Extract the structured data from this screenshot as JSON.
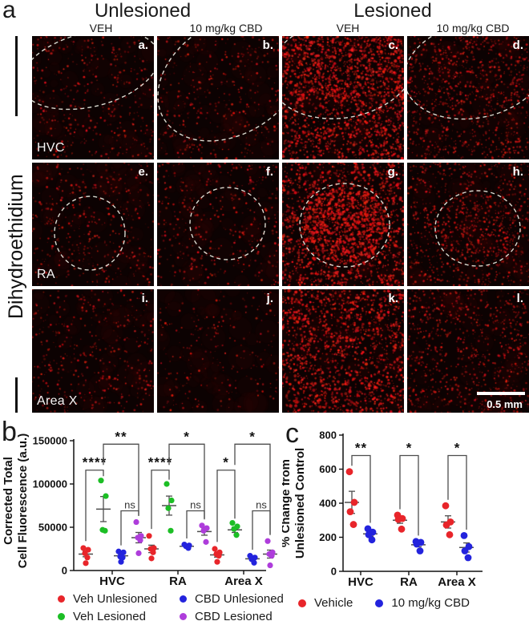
{
  "figure": {
    "panel_a": {
      "label": "a",
      "group_headers": [
        "Unlesioned",
        "Lesioned"
      ],
      "column_headers": [
        "VEH",
        "10 mg/kg CBD",
        "VEH",
        "10 mg/kg CBD"
      ],
      "stain_label": "Dihydroethidium",
      "row_labels": [
        "HVC",
        "RA",
        "Area X"
      ],
      "scale_bar": "0.5 mm",
      "tiles": [
        {
          "label": "a.",
          "row": "HVC",
          "column": "Unlesioned VEH",
          "intensity": "sparse",
          "outlined": true
        },
        {
          "label": "b.",
          "row": "HVC",
          "column": "Unlesioned 10 mg/kg CBD",
          "intensity": "sparse",
          "outlined": true
        },
        {
          "label": "c.",
          "row": "HVC",
          "column": "Lesioned VEH",
          "intensity": "dense",
          "outlined": true
        },
        {
          "label": "d.",
          "row": "HVC",
          "column": "Lesioned 10 mg/kg CBD",
          "intensity": "medium",
          "outlined": true
        },
        {
          "label": "e.",
          "row": "RA",
          "column": "Unlesioned VEH",
          "intensity": "sparse",
          "outlined": true
        },
        {
          "label": "f.",
          "row": "RA",
          "column": "Unlesioned 10 mg/kg CBD",
          "intensity": "sparse",
          "outlined": true
        },
        {
          "label": "g.",
          "row": "RA",
          "column": "Lesioned VEH",
          "intensity": "dense",
          "outlined": true
        },
        {
          "label": "h.",
          "row": "RA",
          "column": "Lesioned 10 mg/kg CBD",
          "intensity": "medium",
          "outlined": true
        },
        {
          "label": "i.",
          "row": "Area X",
          "column": "Unlesioned VEH",
          "intensity": "sparse",
          "outlined": false
        },
        {
          "label": "j.",
          "row": "Area X",
          "column": "Unlesioned 10 mg/kg CBD",
          "intensity": "very-sparse",
          "outlined": false
        },
        {
          "label": "k.",
          "row": "Area X",
          "column": "Lesioned VEH",
          "intensity": "dense",
          "outlined": false
        },
        {
          "label": "l.",
          "row": "Area X",
          "column": "Lesioned 10 mg/kg CBD",
          "intensity": "medium",
          "outlined": false
        }
      ]
    },
    "panel_b": {
      "label": "b"
    },
    "panel_c": {
      "label": "c"
    }
  },
  "chart_data": [
    {
      "type": "scatter",
      "panel": "b",
      "ylabel": "Corrected Total Cell Fluorescence (a.u.)",
      "ylabel_lines": [
        "Corrected Total",
        "Cell Fluorescence (a.u.)"
      ],
      "ylim": [
        0,
        150000
      ],
      "yticks": [
        0,
        50000,
        100000,
        150000
      ],
      "categories": [
        "HVC",
        "RA",
        "Area X"
      ],
      "series": [
        {
          "name": "Veh Unlesioned",
          "color": "#e8252a",
          "values": [
            [
              26000,
              24000,
              20000,
              15000,
              8500
            ],
            [
              40000,
              26000,
              25000,
              21000,
              14000
            ],
            [
              25000,
              21000,
              19000,
              17000,
              10000
            ]
          ],
          "mean": [
            19000,
            25000,
            18000
          ],
          "sem": [
            3100,
            4300,
            2500
          ]
        },
        {
          "name": "Veh Lesioned",
          "color": "#1cbe25",
          "values": [
            [
              104000,
              86000,
              47000,
              46000
            ],
            [
              100000,
              81000,
              72000,
              46000
            ],
            [
              55000,
              51000,
              48000,
              41000
            ]
          ],
          "mean": [
            71000,
            75000,
            47000
          ],
          "sem": [
            14500,
            11000,
            3000
          ]
        },
        {
          "name": "CBD Unlesioned",
          "color": "#2323dd",
          "values": [
            [
              22000,
              21000,
              16000,
              15000,
              10000
            ],
            [
              30000,
              29000,
              28000,
              26000
            ],
            [
              17000,
              15000,
              13000,
              9000
            ]
          ],
          "mean": [
            17000,
            28000,
            13500
          ],
          "sem": [
            2300,
            900,
            1700
          ]
        },
        {
          "name": "CBD Lesioned",
          "color": "#ae3ddb",
          "values": [
            [
              56000,
              40000,
              38000,
              35000,
              20000
            ],
            [
              52000,
              49000,
              46000,
              33000
            ],
            [
              34000,
              21000,
              19000,
              17000,
              6000
            ]
          ],
          "mean": [
            38000,
            45000,
            19000
          ],
          "sem": [
            6000,
            4200,
            4600
          ]
        }
      ],
      "significance": [
        {
          "category": "HVC",
          "pairs": [
            {
              "between": [
                "Veh Unlesioned",
                "Veh Lesioned"
              ],
              "label": "****"
            },
            {
              "between": [
                "Veh Lesioned",
                "CBD Lesioned"
              ],
              "label": "**"
            },
            {
              "between": [
                "CBD Unlesioned",
                "CBD Lesioned"
              ],
              "label": "ns"
            }
          ]
        },
        {
          "category": "RA",
          "pairs": [
            {
              "between": [
                "Veh Unlesioned",
                "Veh Lesioned"
              ],
              "label": "****"
            },
            {
              "between": [
                "Veh Lesioned",
                "CBD Lesioned"
              ],
              "label": "*"
            },
            {
              "between": [
                "CBD Unlesioned",
                "CBD Lesioned"
              ],
              "label": "ns"
            }
          ]
        },
        {
          "category": "Area X",
          "pairs": [
            {
              "between": [
                "Veh Unlesioned",
                "Veh Lesioned"
              ],
              "label": "*"
            },
            {
              "between": [
                "Veh Lesioned",
                "CBD Lesioned"
              ],
              "label": "*"
            },
            {
              "between": [
                "CBD Unlesioned",
                "CBD Lesioned"
              ],
              "label": "ns"
            }
          ]
        }
      ],
      "legend_position": "bottom"
    },
    {
      "type": "scatter",
      "panel": "c",
      "ylabel": "% Change from Unlesioned Control",
      "ylabel_lines": [
        "% Change from",
        "Unlesioned Control"
      ],
      "ylim": [
        0,
        800
      ],
      "yticks": [
        0,
        200,
        400,
        600,
        800
      ],
      "categories": [
        "HVC",
        "RA",
        "Area X"
      ],
      "series": [
        {
          "name": "Vehicle",
          "color": "#e8252a",
          "values": [
            [
              585,
              405,
              350,
              275
            ],
            [
              330,
              310,
              305,
              248
            ],
            [
              385,
              290,
              272,
              215
            ]
          ],
          "mean": [
            405,
            300,
            290
          ],
          "sem": [
            65,
            18,
            36
          ]
        },
        {
          "name": "10 mg/kg CBD",
          "color": "#2323dd",
          "values": [
            [
              250,
              230,
              215,
              185
            ],
            [
              175,
              170,
              160,
              120
            ],
            [
              210,
              145,
              120,
              80
            ]
          ],
          "mean": [
            220,
            156,
            140
          ],
          "sem": [
            14,
            12,
            27
          ]
        }
      ],
      "significance": [
        {
          "category": "HVC",
          "pairs": [
            {
              "between": [
                "Vehicle",
                "10 mg/kg CBD"
              ],
              "label": "**"
            }
          ]
        },
        {
          "category": "RA",
          "pairs": [
            {
              "between": [
                "Vehicle",
                "10 mg/kg CBD"
              ],
              "label": "*"
            }
          ]
        },
        {
          "category": "Area X",
          "pairs": [
            {
              "between": [
                "Vehicle",
                "10 mg/kg CBD"
              ],
              "label": "*"
            }
          ]
        }
      ],
      "legend_position": "bottom"
    }
  ]
}
